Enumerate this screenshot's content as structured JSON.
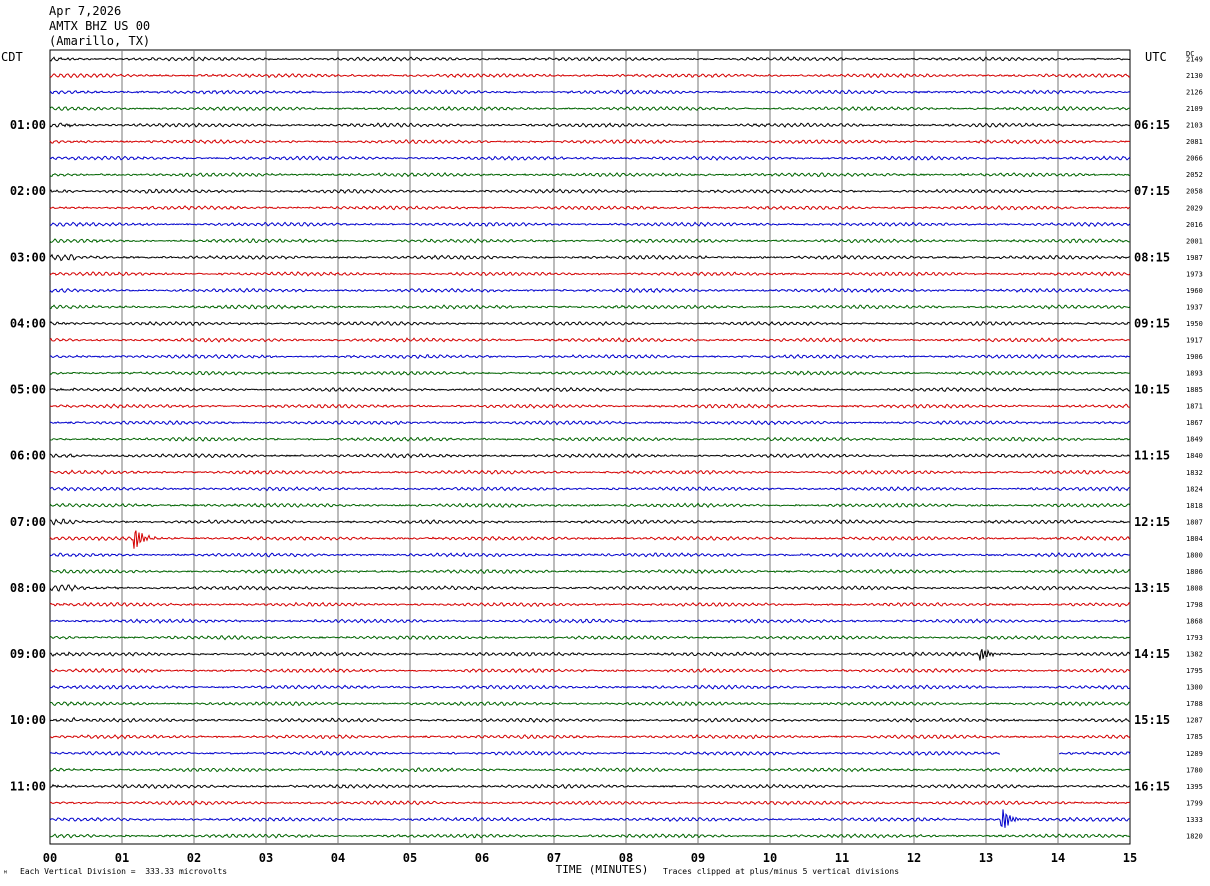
{
  "header": {
    "date": "Apr 7,2026",
    "station": "AMTX BHZ US 00",
    "location": "(Amarillo, TX)"
  },
  "left_zone_label": "CDT",
  "right_zone_label": "UTC",
  "dc_label": "DC",
  "footer": {
    "scale_note": "Each Vertical Division =  333.33 microvolts",
    "clip_note": "Traces clipped at plus/minus 5 vertical divisions",
    "mark": "ᴹ"
  },
  "chart_data": {
    "type": "line",
    "title": "",
    "xlabel": "TIME (MINUTES)",
    "ylabel": "",
    "xlim": [
      0,
      15
    ],
    "x_ticks": [
      "00",
      "01",
      "02",
      "03",
      "04",
      "05",
      "06",
      "07",
      "08",
      "09",
      "10",
      "11",
      "12",
      "13",
      "14",
      "15"
    ],
    "left_time_labels": [
      "01:00",
      "02:00",
      "03:00",
      "04:00",
      "05:00",
      "06:00",
      "07:00",
      "08:00",
      "09:00",
      "10:00",
      "11:00"
    ],
    "right_time_labels": [
      "06:15",
      "07:15",
      "08:15",
      "09:15",
      "10:15",
      "11:15",
      "12:15",
      "13:15",
      "14:15",
      "15:15",
      "16:15"
    ],
    "trace_colors": [
      "#000000",
      "#d40000",
      "#0000cc",
      "#006400"
    ],
    "traces_per_hour": 4,
    "trace_count": 48,
    "dc_offsets": [
      "2149",
      "2130",
      "2126",
      "2109",
      "2103",
      "2081",
      "2066",
      "2052",
      "2058",
      "2029",
      "2016",
      "2001",
      "1987",
      "1973",
      "1960",
      "1937",
      "1950",
      "1917",
      "1906",
      "1893",
      "1885",
      "1871",
      "1867",
      "1849",
      "1840",
      "1832",
      "1824",
      "1818",
      "1807",
      "1804",
      "1800",
      "1806",
      "1808",
      "1798",
      "1868",
      "1793",
      "1382",
      "1795",
      "1300",
      "1788",
      "1287",
      "1785",
      "1289",
      "1780",
      "1395",
      "1799",
      "1333",
      "1820"
    ],
    "events": [
      {
        "trace": 29,
        "minute": 1.2,
        "amplitude_divisions": 5
      },
      {
        "trace": 36,
        "minute": 12.95,
        "amplitude_divisions": 3
      },
      {
        "trace": 46,
        "minute": 13.25,
        "amplitude_divisions": 5
      }
    ],
    "data_gaps": [
      {
        "trace": 42,
        "start_minute": 13.2,
        "end_minute": 14.0
      }
    ],
    "grid": true
  }
}
